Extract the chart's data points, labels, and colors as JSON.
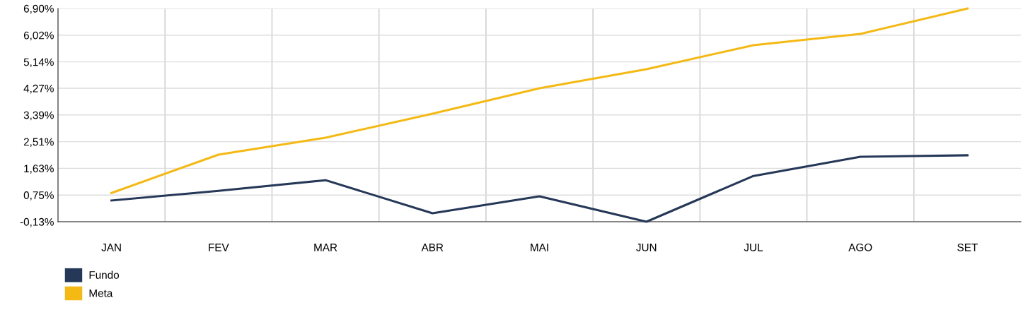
{
  "chart_data": {
    "type": "line",
    "categories": [
      "JAN",
      "FEV",
      "MAR",
      "ABR",
      "MAI",
      "JUN",
      "JUL",
      "AGO",
      "SET"
    ],
    "series": [
      {
        "name": "Fundo",
        "color": "#253858",
        "values": [
          0.57,
          0.89,
          1.24,
          0.15,
          0.71,
          -0.13,
          1.38,
          2.01,
          2.06
        ]
      },
      {
        "name": "Meta",
        "color": "#f5b914",
        "values": [
          0.82,
          2.08,
          2.64,
          3.43,
          4.27,
          4.9,
          5.69,
          6.06,
          6.9
        ]
      }
    ],
    "ylim": [
      -0.13,
      6.9
    ],
    "yticks": [
      {
        "value": -0.13,
        "label": "-0,13%"
      },
      {
        "value": 0.75,
        "label": "0,75%"
      },
      {
        "value": 1.63,
        "label": "1,63%"
      },
      {
        "value": 2.51,
        "label": "2,51%"
      },
      {
        "value": 3.39,
        "label": "3,39%"
      },
      {
        "value": 4.27,
        "label": "4,27%"
      },
      {
        "value": 5.14,
        "label": "5,14%"
      },
      {
        "value": 6.02,
        "label": "6,02%"
      },
      {
        "value": 6.9,
        "label": "6,90%"
      }
    ],
    "grid": true,
    "legend": "bottom left",
    "marker": "none",
    "line_style": "solid"
  }
}
